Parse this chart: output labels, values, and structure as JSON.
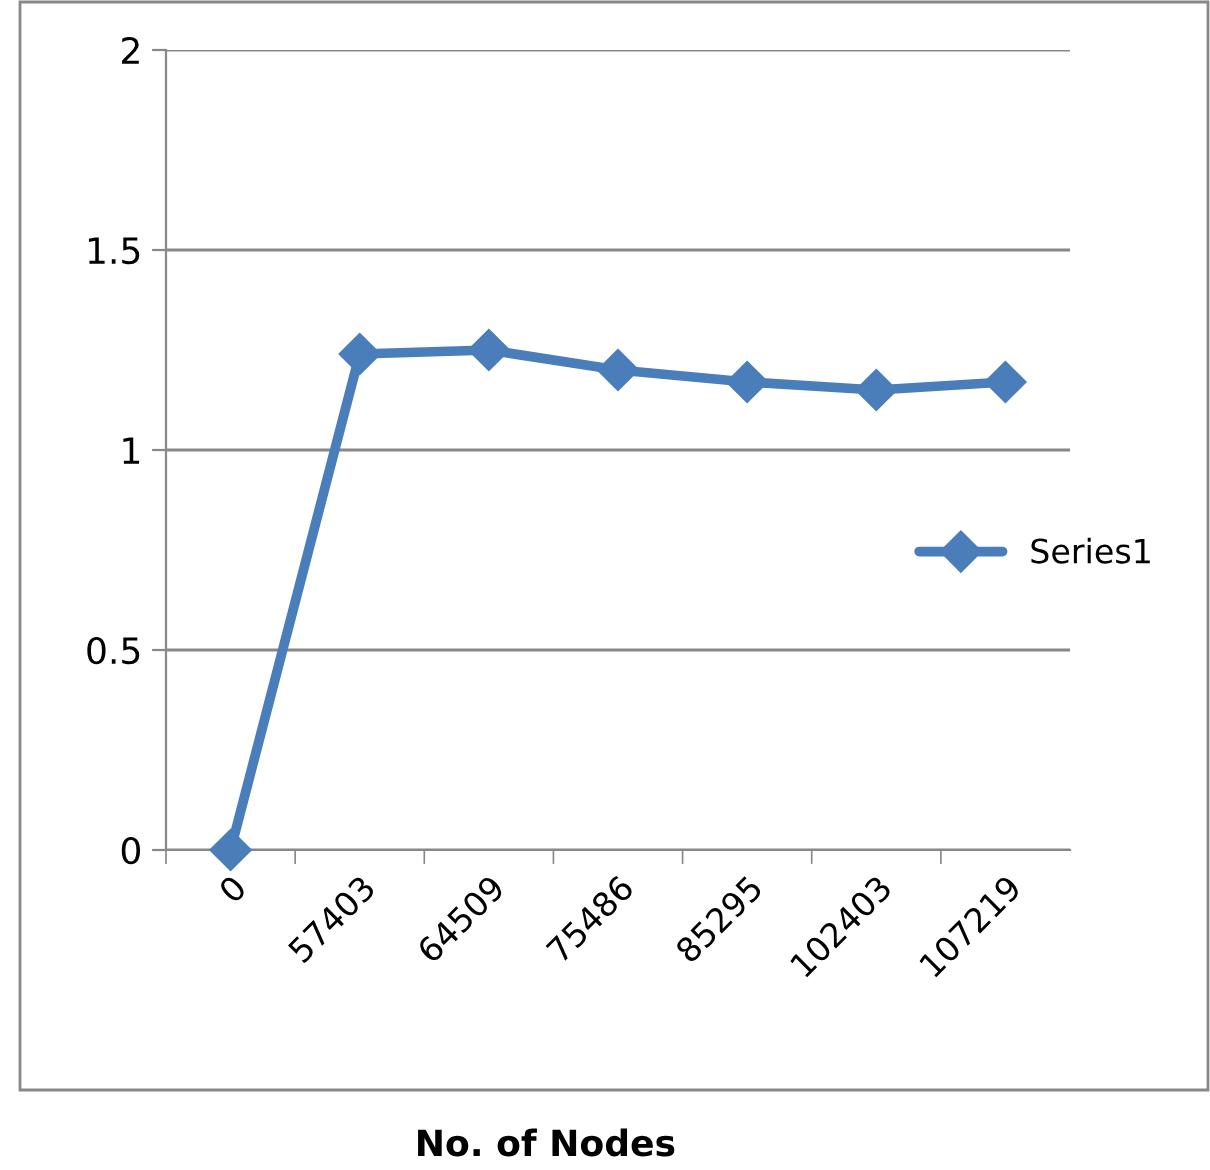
{
  "chart_data": {
    "type": "line",
    "xlabel": "No. of Nodes",
    "categories": [
      "0",
      "57403",
      "64509",
      "75486",
      "85295",
      "102403",
      "107219"
    ],
    "series": [
      {
        "name": "Series1",
        "color": "#4a7ebb",
        "values": [
          0,
          1.24,
          1.25,
          1.2,
          1.17,
          1.15,
          1.17
        ]
      }
    ],
    "ylim": [
      0,
      2
    ],
    "yticks": [
      0,
      0.5,
      1,
      1.5,
      2
    ],
    "grid": "y",
    "legend": "right",
    "marker": "diamond",
    "line_style": "solid"
  }
}
